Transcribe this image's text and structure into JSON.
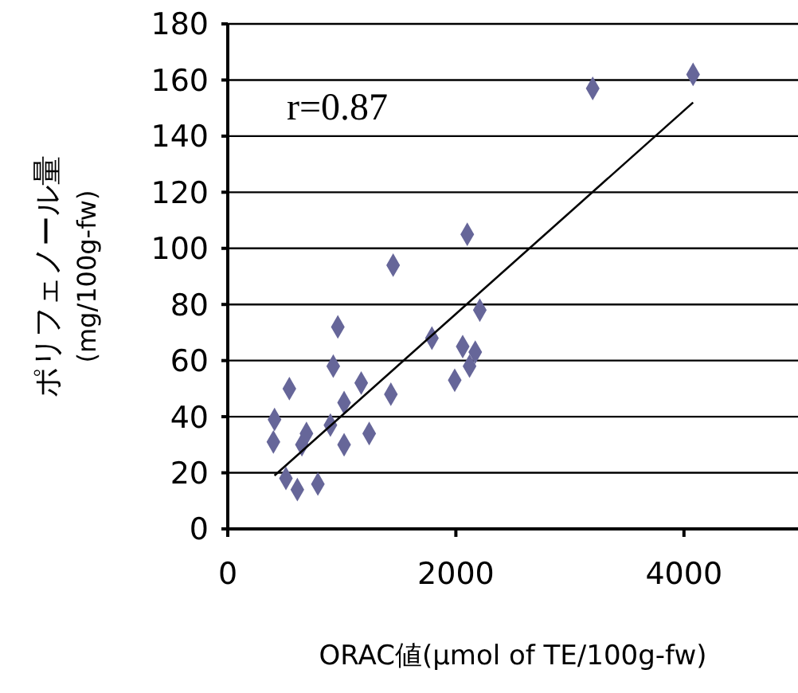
{
  "chart_data": {
    "type": "scatter",
    "xlabel": "ORAC値(μmol of TE/100g-fw)",
    "ylabel": "ポリフェノール量\n(mg/100g-fw)",
    "annotations": [
      "r=0.87"
    ],
    "xlim": [
      0,
      5000
    ],
    "xticks": [
      0,
      2000,
      4000
    ],
    "ylim": [
      0,
      180
    ],
    "yticks": [
      0,
      20,
      40,
      60,
      80,
      100,
      120,
      140,
      160,
      180
    ],
    "grid": "y",
    "marker": "diamond",
    "series": [
      {
        "color": "#666699",
        "x": [
          4080,
          3200,
          1450,
          2100,
          965,
          925,
          540,
          1790,
          2210,
          2170,
          1990,
          2120,
          2060,
          1430,
          1170,
          1020,
          900,
          1240,
          410,
          400,
          650,
          610,
          790,
          510,
          690,
          1020
        ],
        "values": [
          162,
          157,
          94,
          105,
          72,
          58,
          50,
          68,
          78,
          63,
          53,
          58,
          65,
          48,
          52,
          45,
          37,
          34,
          39,
          31,
          30,
          14,
          16,
          18,
          34,
          30
        ]
      },
      {
        "type": "line",
        "color": "#000000",
        "marker": "none",
        "x": [
          410,
          4080
        ],
        "values": [
          19,
          152
        ]
      }
    ]
  }
}
